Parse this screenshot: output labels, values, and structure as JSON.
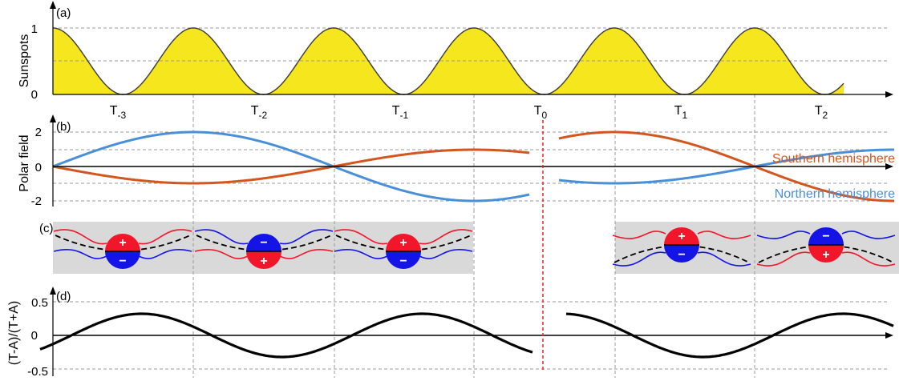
{
  "panel_a": {
    "tag": "(a)",
    "ylabel": "Sunspots",
    "yticks": [
      "1",
      "0"
    ],
    "time_labels": [
      {
        "base": "T",
        "sub": "-3"
      },
      {
        "base": "T",
        "sub": "-2"
      },
      {
        "base": "T",
        "sub": "-1"
      },
      {
        "base": "T",
        "sub": "0"
      },
      {
        "base": "T",
        "sub": "1"
      },
      {
        "base": "T",
        "sub": "2"
      }
    ]
  },
  "panel_b": {
    "tag": "(b)",
    "ylabel": "Polar field",
    "yticks": [
      "2",
      "0",
      "-2"
    ],
    "southern_label": "Southern hemisphere",
    "northern_label": "Northern hemisphere"
  },
  "panel_c": {
    "tag": "(c)",
    "plus": "+",
    "minus": "−"
  },
  "panel_d": {
    "tag": "(d)",
    "ylabel": "(T-A)/(T+A)",
    "yticks": [
      "0.5",
      "0",
      "-0.5"
    ]
  },
  "colors": {
    "sunspot_fill": "#f5e61e",
    "southern": "#d3561f",
    "northern": "#4a90d9",
    "marker_line": "#e0282c",
    "gray_band": "#d9d9d9",
    "red_pole": "#f2162a",
    "blue_pole": "#1414e6"
  }
}
